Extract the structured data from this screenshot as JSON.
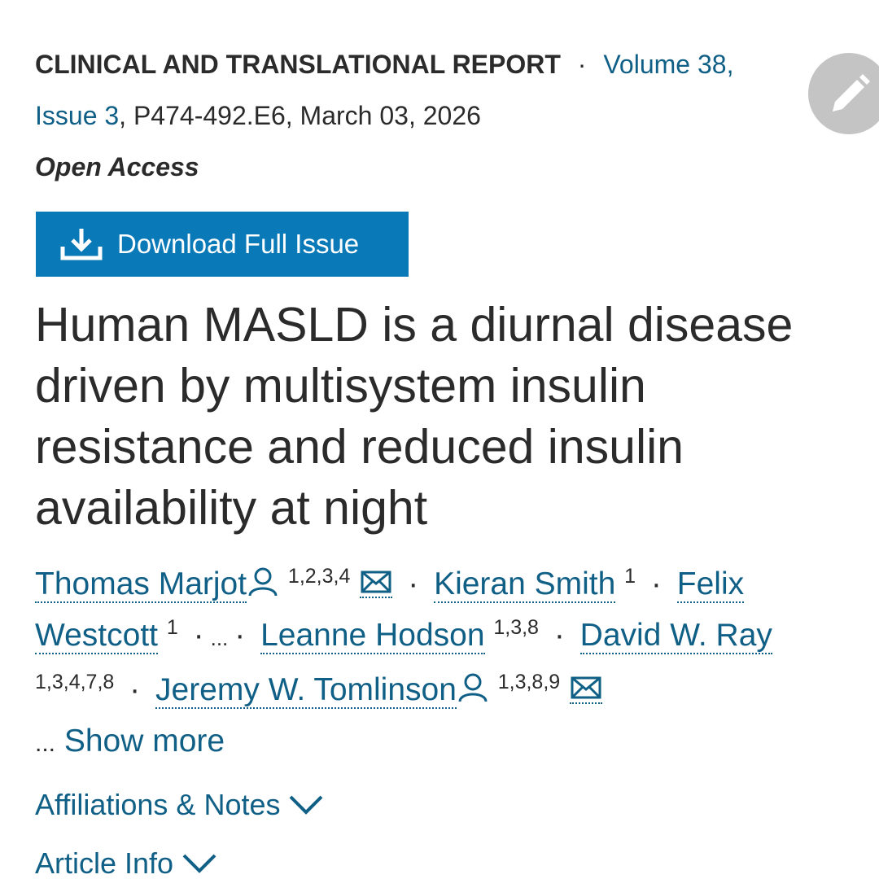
{
  "header": {
    "section": "CLINICAL AND TRANSLATIONAL REPORT",
    "separator": "·",
    "volume": "Volume 38,",
    "issue": "Issue 3",
    "details": ", P474-492.E6, March 03, 2026",
    "access": "Open Access"
  },
  "download_button": "Download Full Issue",
  "title": "Human MASLD is a diurnal disease driven by multisystem insulin resistance and reduced insulin availability at night",
  "authors": [
    {
      "name": "Thomas Marjot",
      "affiliations": "1,2,3,4"
    },
    {
      "name": "Kieran Smith",
      "affiliations": "1"
    },
    {
      "name": "Felix Westcott",
      "affiliations": "1"
    },
    {
      "name": "Leanne Hodson",
      "affiliations": "1,3,8"
    },
    {
      "name": "David W. Ray",
      "affiliations": "1,3,4,7,8"
    },
    {
      "name": "Jeremy W. Tomlinson",
      "affiliations": "1,3,8,9"
    }
  ],
  "author_separator": "·",
  "omitted": "...",
  "show_more": {
    "ellipsis": "...",
    "label": "Show more"
  },
  "sections": [
    "Affiliations & Notes",
    "Article Info"
  ]
}
